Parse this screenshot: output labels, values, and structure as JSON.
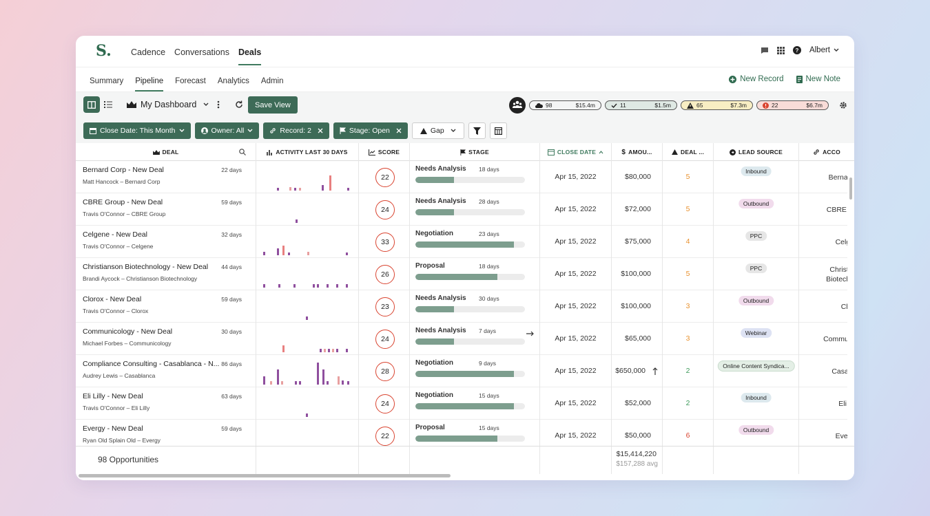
{
  "app": {
    "logo": "S."
  },
  "nav": {
    "items": [
      "Cadence",
      "Conversations",
      "Deals"
    ],
    "active": "Deals",
    "user": "Albert"
  },
  "subnav": {
    "tabs": [
      "Summary",
      "Pipeline",
      "Forecast",
      "Analytics",
      "Admin"
    ],
    "active": "Pipeline",
    "new_record": "New Record",
    "new_note": "New Note"
  },
  "toolbar": {
    "dashboard": "My Dashboard",
    "save_view": "Save View",
    "pills": [
      {
        "count": "98",
        "amount": "$15.4m",
        "color": "#ffffff",
        "icon": "cloud-icon"
      },
      {
        "count": "11",
        "amount": "$1.5m",
        "color": "#dfe9e4",
        "icon": "check-icon"
      },
      {
        "count": "65",
        "amount": "$7.3m",
        "color": "#f8eec3",
        "icon": "warning-icon"
      },
      {
        "count": "22",
        "amount": "$6.7m",
        "color": "#f9dcd8",
        "icon": "alert-icon"
      }
    ],
    "filters": [
      "Close Date: This Month",
      "Owner: All",
      "Record: 2",
      "Stage: Open",
      "Gap"
    ]
  },
  "columns": [
    "DEAL",
    "ACTIVITY LAST 30 DAYS",
    "SCORE",
    "STAGE",
    "CLOSE DATE",
    "AMOU...",
    "DEAL ...",
    "LEAD SOURCE",
    "ACCO"
  ],
  "rows": [
    {
      "deal": "Bernard Corp - New Deal",
      "sub": "Matt Hancock – Bernard Corp",
      "days": "22 days",
      "score": "22",
      "stage": "Needs Analysis",
      "stage_days": "18 days",
      "progress": 0.35,
      "close": "Apr 15, 2022",
      "amount": "$80,000",
      "deal_gap": "5",
      "gap_color": "#e8912e",
      "lead": "Inbound",
      "lead_bg": "#dde9ee",
      "account": "Bernard"
    },
    {
      "deal": "CBRE Group - New Deal",
      "sub": "Travis O'Connor – CBRE Group",
      "days": "59 days",
      "score": "24",
      "stage": "Needs Analysis",
      "stage_days": "28 days",
      "progress": 0.35,
      "close": "Apr 15, 2022",
      "amount": "$72,000",
      "deal_gap": "5",
      "gap_color": "#e8912e",
      "lead": "Outbound",
      "lead_bg": "#f1dbec",
      "account": "CBRE G"
    },
    {
      "deal": "Celgene - New Deal",
      "sub": "Travis O'Connor – Celgene",
      "days": "32 days",
      "score": "33",
      "stage": "Negotiation",
      "stage_days": "23 days",
      "progress": 0.9,
      "close": "Apr 15, 2022",
      "amount": "$75,000",
      "deal_gap": "4",
      "gap_color": "#e8912e",
      "lead": "PPC",
      "lead_bg": "#e6e6e6",
      "account": "Celge"
    },
    {
      "deal": "Christianson Biotechnology - New Deal",
      "sub": "Brandi Aycock – Christianson Biotechnology",
      "days": "44 days",
      "score": "26",
      "stage": "Proposal",
      "stage_days": "18 days",
      "progress": 0.75,
      "close": "Apr 15, 2022",
      "amount": "$100,000",
      "deal_gap": "5",
      "gap_color": "#e8912e",
      "lead": "PPC",
      "lead_bg": "#e6e6e6",
      "account": "Christia Biotechn"
    },
    {
      "deal": "Clorox - New Deal",
      "sub": "Travis O'Connor – Clorox",
      "days": "59 days",
      "score": "23",
      "stage": "Needs Analysis",
      "stage_days": "30 days",
      "progress": 0.35,
      "close": "Apr 15, 2022",
      "amount": "$100,000",
      "deal_gap": "3",
      "gap_color": "#e8912e",
      "lead": "Outbound",
      "lead_bg": "#f1dbec",
      "account": "Clor"
    },
    {
      "deal": "Communicology - New Deal",
      "sub": "Michael Forbes – Communicology",
      "days": "30 days",
      "score": "24",
      "stage": "Needs Analysis",
      "stage_days": "7 days",
      "progress": 0.35,
      "close": "Apr 15, 2022",
      "amount": "$65,000",
      "deal_gap": "3",
      "gap_color": "#e8912e",
      "lead": "Webinar",
      "lead_bg": "#dde2f3",
      "account": "Communi"
    },
    {
      "deal": "Compliance Consulting - Casablanca - N...",
      "sub": "Audrey Lewis – Casablanca",
      "days": "86 days",
      "score": "28",
      "stage": "Negotiation",
      "stage_days": "9 days",
      "progress": 0.9,
      "close": "Apr 15, 2022",
      "amount": "$650,000",
      "deal_gap": "2",
      "gap_color": "#3d9a5a",
      "lead": "Online Content Syndica...",
      "lead_bg": "#e4efe6",
      "account": "Casabl"
    },
    {
      "deal": "Eli Lilly - New Deal",
      "sub": "Travis O'Connor – Eli Lilly",
      "days": "63 days",
      "score": "24",
      "stage": "Negotiation",
      "stage_days": "15 days",
      "progress": 0.9,
      "close": "Apr 15, 2022",
      "amount": "$52,000",
      "deal_gap": "2",
      "gap_color": "#3d9a5a",
      "lead": "Inbound",
      "lead_bg": "#dde9ee",
      "account": "Eli Li"
    },
    {
      "deal": "Evergy - New Deal",
      "sub": "Ryan Old Splain Old – Evergy",
      "days": "59 days",
      "score": "22",
      "stage": "Proposal",
      "stage_days": "15 days",
      "progress": 0.75,
      "close": "Apr 15, 2022",
      "amount": "$50,000",
      "deal_gap": "6",
      "gap_color": "#d9432f",
      "lead": "Outbound",
      "lead_bg": "#f1dbec",
      "account": "Everg"
    }
  ],
  "footer": {
    "count": "98 Opportunities",
    "total": "$15,414,220",
    "avg": "$157,288 avg"
  }
}
